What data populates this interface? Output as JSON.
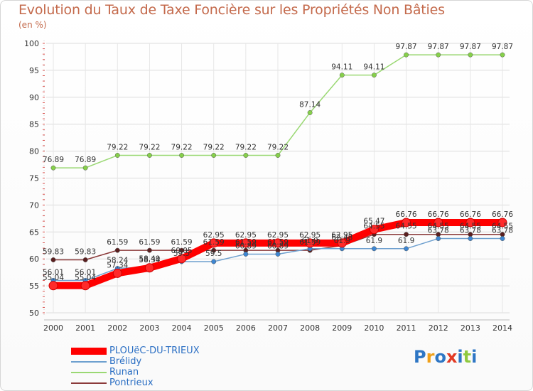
{
  "title": "Evolution du Taux de Taxe Foncière sur les Propriétés Non Bâties",
  "subtitle": "(en %)",
  "logo": {
    "text": "Proxiti",
    "letters": [
      "P",
      "r",
      "o",
      "x",
      "i",
      "t",
      "i"
    ],
    "colors": [
      "#2e76c4",
      "#f0a018",
      "#2e76c4",
      "#e23a24",
      "#2e76c4",
      "#8fc93f",
      "#2e76c4"
    ]
  },
  "chart_data": {
    "type": "line",
    "title": "Evolution du Taux de Taxe Foncière sur les Propriétés Non Bâties",
    "ylabel": "(en %)",
    "xlabel": "",
    "x": [
      "2000",
      "2001",
      "2002",
      "2003",
      "2004",
      "2005",
      "2006",
      "2007",
      "2008",
      "2009",
      "2010",
      "2011",
      "2012",
      "2013",
      "2014"
    ],
    "ylim": [
      50,
      100
    ],
    "yticks": [
      "50",
      "55",
      "60",
      "65",
      "70",
      "75",
      "80",
      "85",
      "90",
      "95",
      "100"
    ],
    "grid": true,
    "legend_position": "bottom-left",
    "series": [
      {
        "name": "PLOUëC-DU-TRIEUX",
        "color": "#ff0000",
        "marker_color": "#ff2a2a",
        "style": "thick",
        "values": [
          55.04,
          55.04,
          57.34,
          58.34,
          60.05,
          62.95,
          62.95,
          62.95,
          62.95,
          62.95,
          65.47,
          66.76,
          66.76,
          66.76,
          66.76
        ],
        "labels": [
          "55.04",
          "55.04",
          "57.34",
          "58.34",
          "60.05",
          "62.95",
          "62.95",
          "62.95",
          "62.95",
          "62.95",
          "65.47",
          "66.76",
          "66.76",
          "66.76",
          "66.76"
        ]
      },
      {
        "name": "Brélidy",
        "color": "#6ea0cf",
        "marker_color": "#3d86d2",
        "style": "thin",
        "values": [
          56.01,
          56.01,
          58.24,
          58.49,
          59.5,
          59.5,
          60.89,
          60.89,
          61.9,
          61.9,
          61.9,
          61.9,
          63.78,
          63.78,
          63.78
        ],
        "labels": [
          "56.01",
          "56.01",
          "58.24",
          "58.49",
          "59.5",
          "59.5",
          "60.89",
          "60.89",
          "61.9",
          "61.9",
          "61.9",
          "61.9",
          "63.78",
          "63.78",
          "63.78"
        ]
      },
      {
        "name": "Runan",
        "color": "#9ad873",
        "marker_color": "#86d04a",
        "style": "thin",
        "values": [
          76.89,
          76.89,
          79.22,
          79.22,
          79.22,
          79.22,
          79.22,
          79.22,
          87.14,
          94.11,
          94.11,
          97.87,
          97.87,
          97.87,
          97.87
        ],
        "labels": [
          "76.89",
          "76.89",
          "79.22",
          "79.22",
          "79.22",
          "79.22",
          "79.22",
          "79.22",
          "87.14",
          "94.11",
          "94.11",
          "97.87",
          "97.87",
          "97.87",
          "97.87"
        ]
      },
      {
        "name": "Pontrieux",
        "color": "#8b3a3a",
        "marker_color": "#5a1f1f",
        "style": "thin",
        "values": [
          59.83,
          59.83,
          61.59,
          61.59,
          61.59,
          61.59,
          61.59,
          61.59,
          61.59,
          62.48,
          64.55,
          64.55,
          64.55,
          64.55,
          64.55
        ],
        "labels": [
          "59.83",
          "59.83",
          "61.59",
          "61.59",
          "61.59",
          "61.59",
          "61.59",
          "61.59",
          "61.59",
          "62.48",
          "64.55",
          "64.55",
          "64.55",
          "64.55",
          "64.55"
        ]
      }
    ]
  }
}
